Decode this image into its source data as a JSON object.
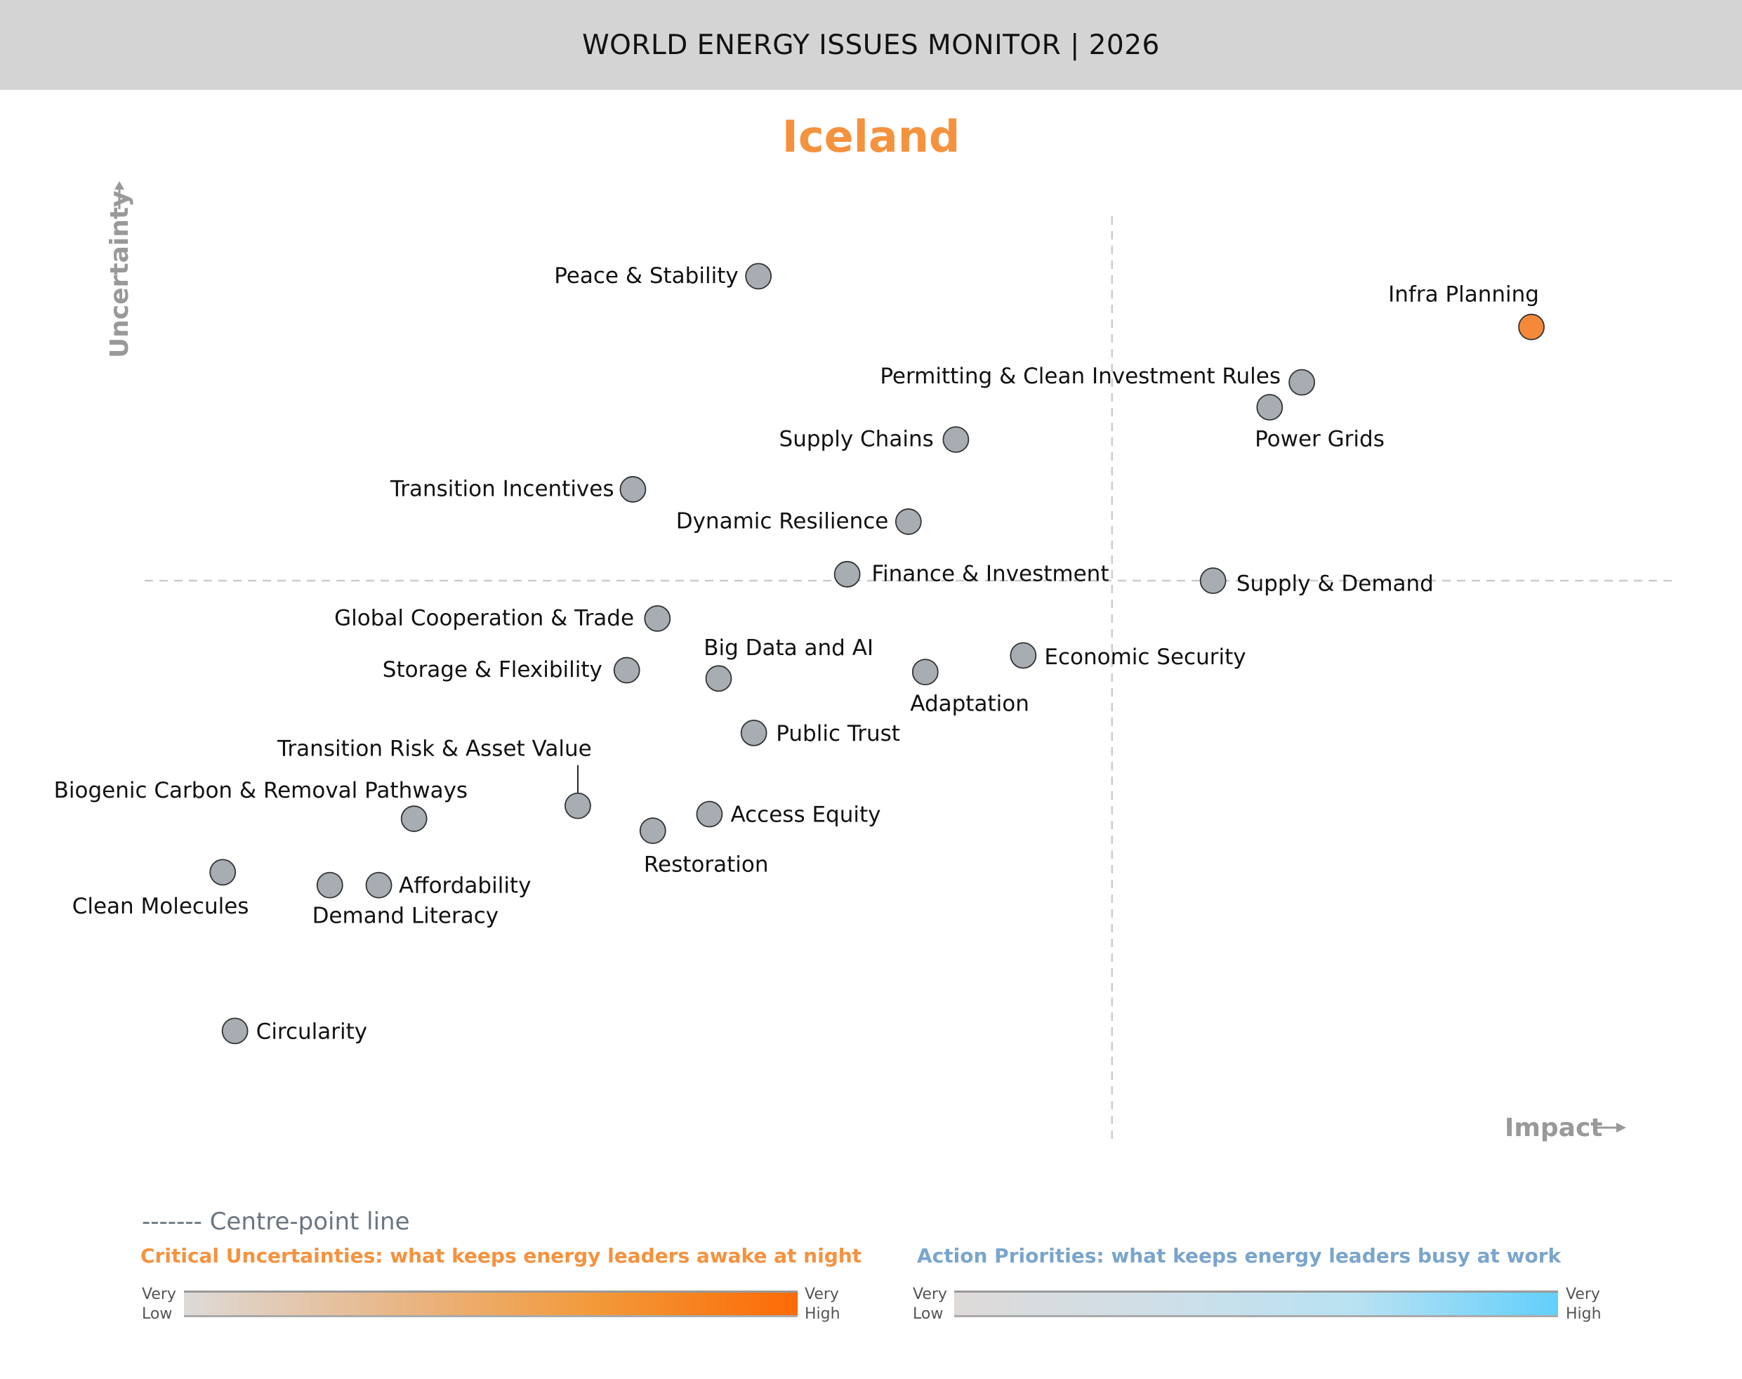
{
  "header": {
    "title": "WORLD ENERGY ISSUES MONITOR | 2026"
  },
  "country": "Iceland",
  "chart_data": {
    "type": "scatter",
    "title": "Iceland",
    "xlabel": "Impact",
    "ylabel": "Uncertainty",
    "xlim": [
      0,
      10
    ],
    "ylim": [
      0,
      10
    ],
    "centre_point": {
      "x": 6.32,
      "y": 6.05
    },
    "grid": false,
    "colors": {
      "default": "#a7adb2",
      "highlight": "#f5893a",
      "outline": "#333333"
    },
    "points": [
      {
        "label": "Peace & Stability",
        "x": 4.01,
        "y": 9.35
      },
      {
        "label": "Infra Planning",
        "x": 9.06,
        "y": 8.8,
        "highlight": true
      },
      {
        "label": "Permitting & Clean Investment Rules",
        "x": 7.56,
        "y": 8.2
      },
      {
        "label": "Power Grids",
        "x": 7.35,
        "y": 7.93
      },
      {
        "label": "Supply Chains",
        "x": 5.3,
        "y": 7.58
      },
      {
        "label": "Transition Incentives",
        "x": 3.19,
        "y": 7.04
      },
      {
        "label": "Dynamic Resilience",
        "x": 4.99,
        "y": 6.69
      },
      {
        "label": "Finance & Investment",
        "x": 4.59,
        "y": 6.12
      },
      {
        "label": "Supply & Demand",
        "x": 6.98,
        "y": 6.05
      },
      {
        "label": "Global Cooperation & Trade",
        "x": 3.35,
        "y": 5.64
      },
      {
        "label": "Storage & Flexibility",
        "x": 3.15,
        "y": 5.08
      },
      {
        "label": "Big Data and AI",
        "x": 3.75,
        "y": 4.99
      },
      {
        "label": "Adaptation",
        "x": 5.1,
        "y": 5.06
      },
      {
        "label": "Economic Security",
        "x": 5.74,
        "y": 5.24
      },
      {
        "label": "Public Trust",
        "x": 3.98,
        "y": 4.4
      },
      {
        "label": "Transition Risk & Asset Value",
        "x": 2.83,
        "y": 3.61
      },
      {
        "label": "Biogenic Carbon & Removal Pathways",
        "x": 1.76,
        "y": 3.47
      },
      {
        "label": "Access Equity",
        "x": 3.69,
        "y": 3.52
      },
      {
        "label": "Restoration",
        "x": 3.32,
        "y": 3.34
      },
      {
        "label": "Clean Molecules",
        "x": 0.51,
        "y": 2.89
      },
      {
        "label": "Demand Literacy",
        "x": 1.21,
        "y": 2.75
      },
      {
        "label": "Affordability",
        "x": 1.53,
        "y": 2.75
      },
      {
        "label": "Circularity",
        "x": 0.59,
        "y": 1.17
      }
    ]
  },
  "legend": {
    "centre_line": "------- Centre-point line",
    "critical_title": "Critical Uncertainties: what keeps energy leaders awake at night",
    "action_title": "Action Priorities: what keeps energy leaders busy at work",
    "very": "Very",
    "low": "Low",
    "high": "High",
    "critical_gradient": [
      "#dedad8",
      "#e8b88a",
      "#f29a3a",
      "#fc6a05"
    ],
    "action_gradient": [
      "#dedad8",
      "#cfdfe8",
      "#b8e2f2",
      "#62cffc"
    ],
    "critical_color": "#f5923e",
    "action_color": "#7aa5cc"
  }
}
